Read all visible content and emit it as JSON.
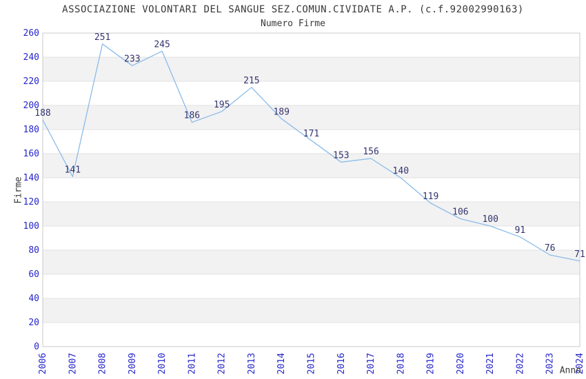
{
  "chart_data": {
    "type": "line",
    "title": "ASSOCIAZIONE VOLONTARI DEL SANGUE SEZ.COMUN.CIVIDATE A.P. (c.f.92002990163)",
    "subtitle": "Numero Firme",
    "xlabel": "Anno",
    "ylabel": "Firme",
    "x": [
      "2006",
      "2007",
      "2008",
      "2009",
      "2010",
      "2011",
      "2012",
      "2013",
      "2014",
      "2015",
      "2016",
      "2017",
      "2018",
      "2019",
      "2020",
      "2021",
      "2022",
      "2023",
      "2024"
    ],
    "series": [
      {
        "name": "Numero Firme",
        "values": [
          188,
          141,
          251,
          233,
          245,
          186,
          195,
          215,
          189,
          171,
          153,
          156,
          140,
          119,
          106,
          100,
          91,
          76,
          71
        ]
      }
    ],
    "ylim": [
      0,
      260
    ],
    "ytick_step": 20,
    "yticks": [
      0,
      20,
      40,
      60,
      80,
      100,
      120,
      140,
      160,
      180,
      200,
      220,
      240,
      260
    ],
    "grid": "horizontal-gridlines-with-alternating-bands",
    "legend_position": "none",
    "data_labels_shown": true,
    "x_tick_rotation_deg": 90,
    "colors": {
      "line": "#8abbea",
      "tick_label": "#2424cc",
      "data_label": "#333370",
      "band": "#f2f2f2",
      "gridline": "#e2e2e2",
      "plot_border": "#c9c9c9",
      "text": "#383838",
      "background": "#ffffff"
    }
  }
}
